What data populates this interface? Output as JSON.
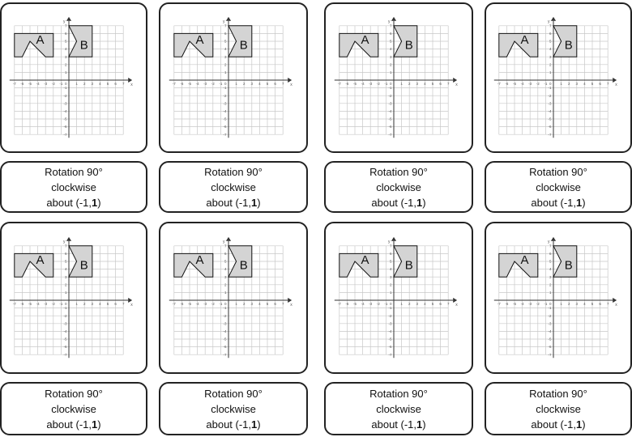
{
  "cards": [
    {
      "shape_a": "A",
      "shape_b": "B",
      "line1": "Rotation 90°",
      "line2": "clockwise",
      "line3_prefix": "about (-1,",
      "line3_bold": "1",
      "line3_suffix": ")"
    },
    {
      "shape_a": "A",
      "shape_b": "B",
      "line1": "Rotation 90°",
      "line2": "clockwise",
      "line3_prefix": "about (-1,",
      "line3_bold": "1",
      "line3_suffix": ")"
    },
    {
      "shape_a": "A",
      "shape_b": "B",
      "line1": "Rotation 90°",
      "line2": "clockwise",
      "line3_prefix": "about (-1,",
      "line3_bold": "1",
      "line3_suffix": ")"
    },
    {
      "shape_a": "A",
      "shape_b": "B",
      "line1": "Rotation 90°",
      "line2": "clockwise",
      "line3_prefix": "about (-1,",
      "line3_bold": "1",
      "line3_suffix": ")"
    },
    {
      "shape_a": "A",
      "shape_b": "B",
      "line1": "Rotation 90°",
      "line2": "clockwise",
      "line3_prefix": "about (-1,",
      "line3_bold": "1",
      "line3_suffix": ")"
    },
    {
      "shape_a": "A",
      "shape_b": "B",
      "line1": "Rotation 90°",
      "line2": "clockwise",
      "line3_prefix": "about (-1,",
      "line3_bold": "1",
      "line3_suffix": ")"
    },
    {
      "shape_a": "A",
      "shape_b": "B",
      "line1": "Rotation 90°",
      "line2": "clockwise",
      "line3_prefix": "about (-1,",
      "line3_bold": "1",
      "line3_suffix": ")"
    },
    {
      "shape_a": "A",
      "shape_b": "B",
      "line1": "Rotation 90°",
      "line2": "clockwise",
      "line3_prefix": "about (-1,",
      "line3_bold": "1",
      "line3_suffix": ")"
    }
  ],
  "axis": {
    "x_label": "x",
    "y_label": "y",
    "x_min": -7,
    "x_max": 7,
    "y_min": -7,
    "y_max": 7
  },
  "colors": {
    "shape_fill": "#d4d4d4",
    "grid": "#c8c8c8",
    "axis": "#333333",
    "border": "#222222"
  }
}
